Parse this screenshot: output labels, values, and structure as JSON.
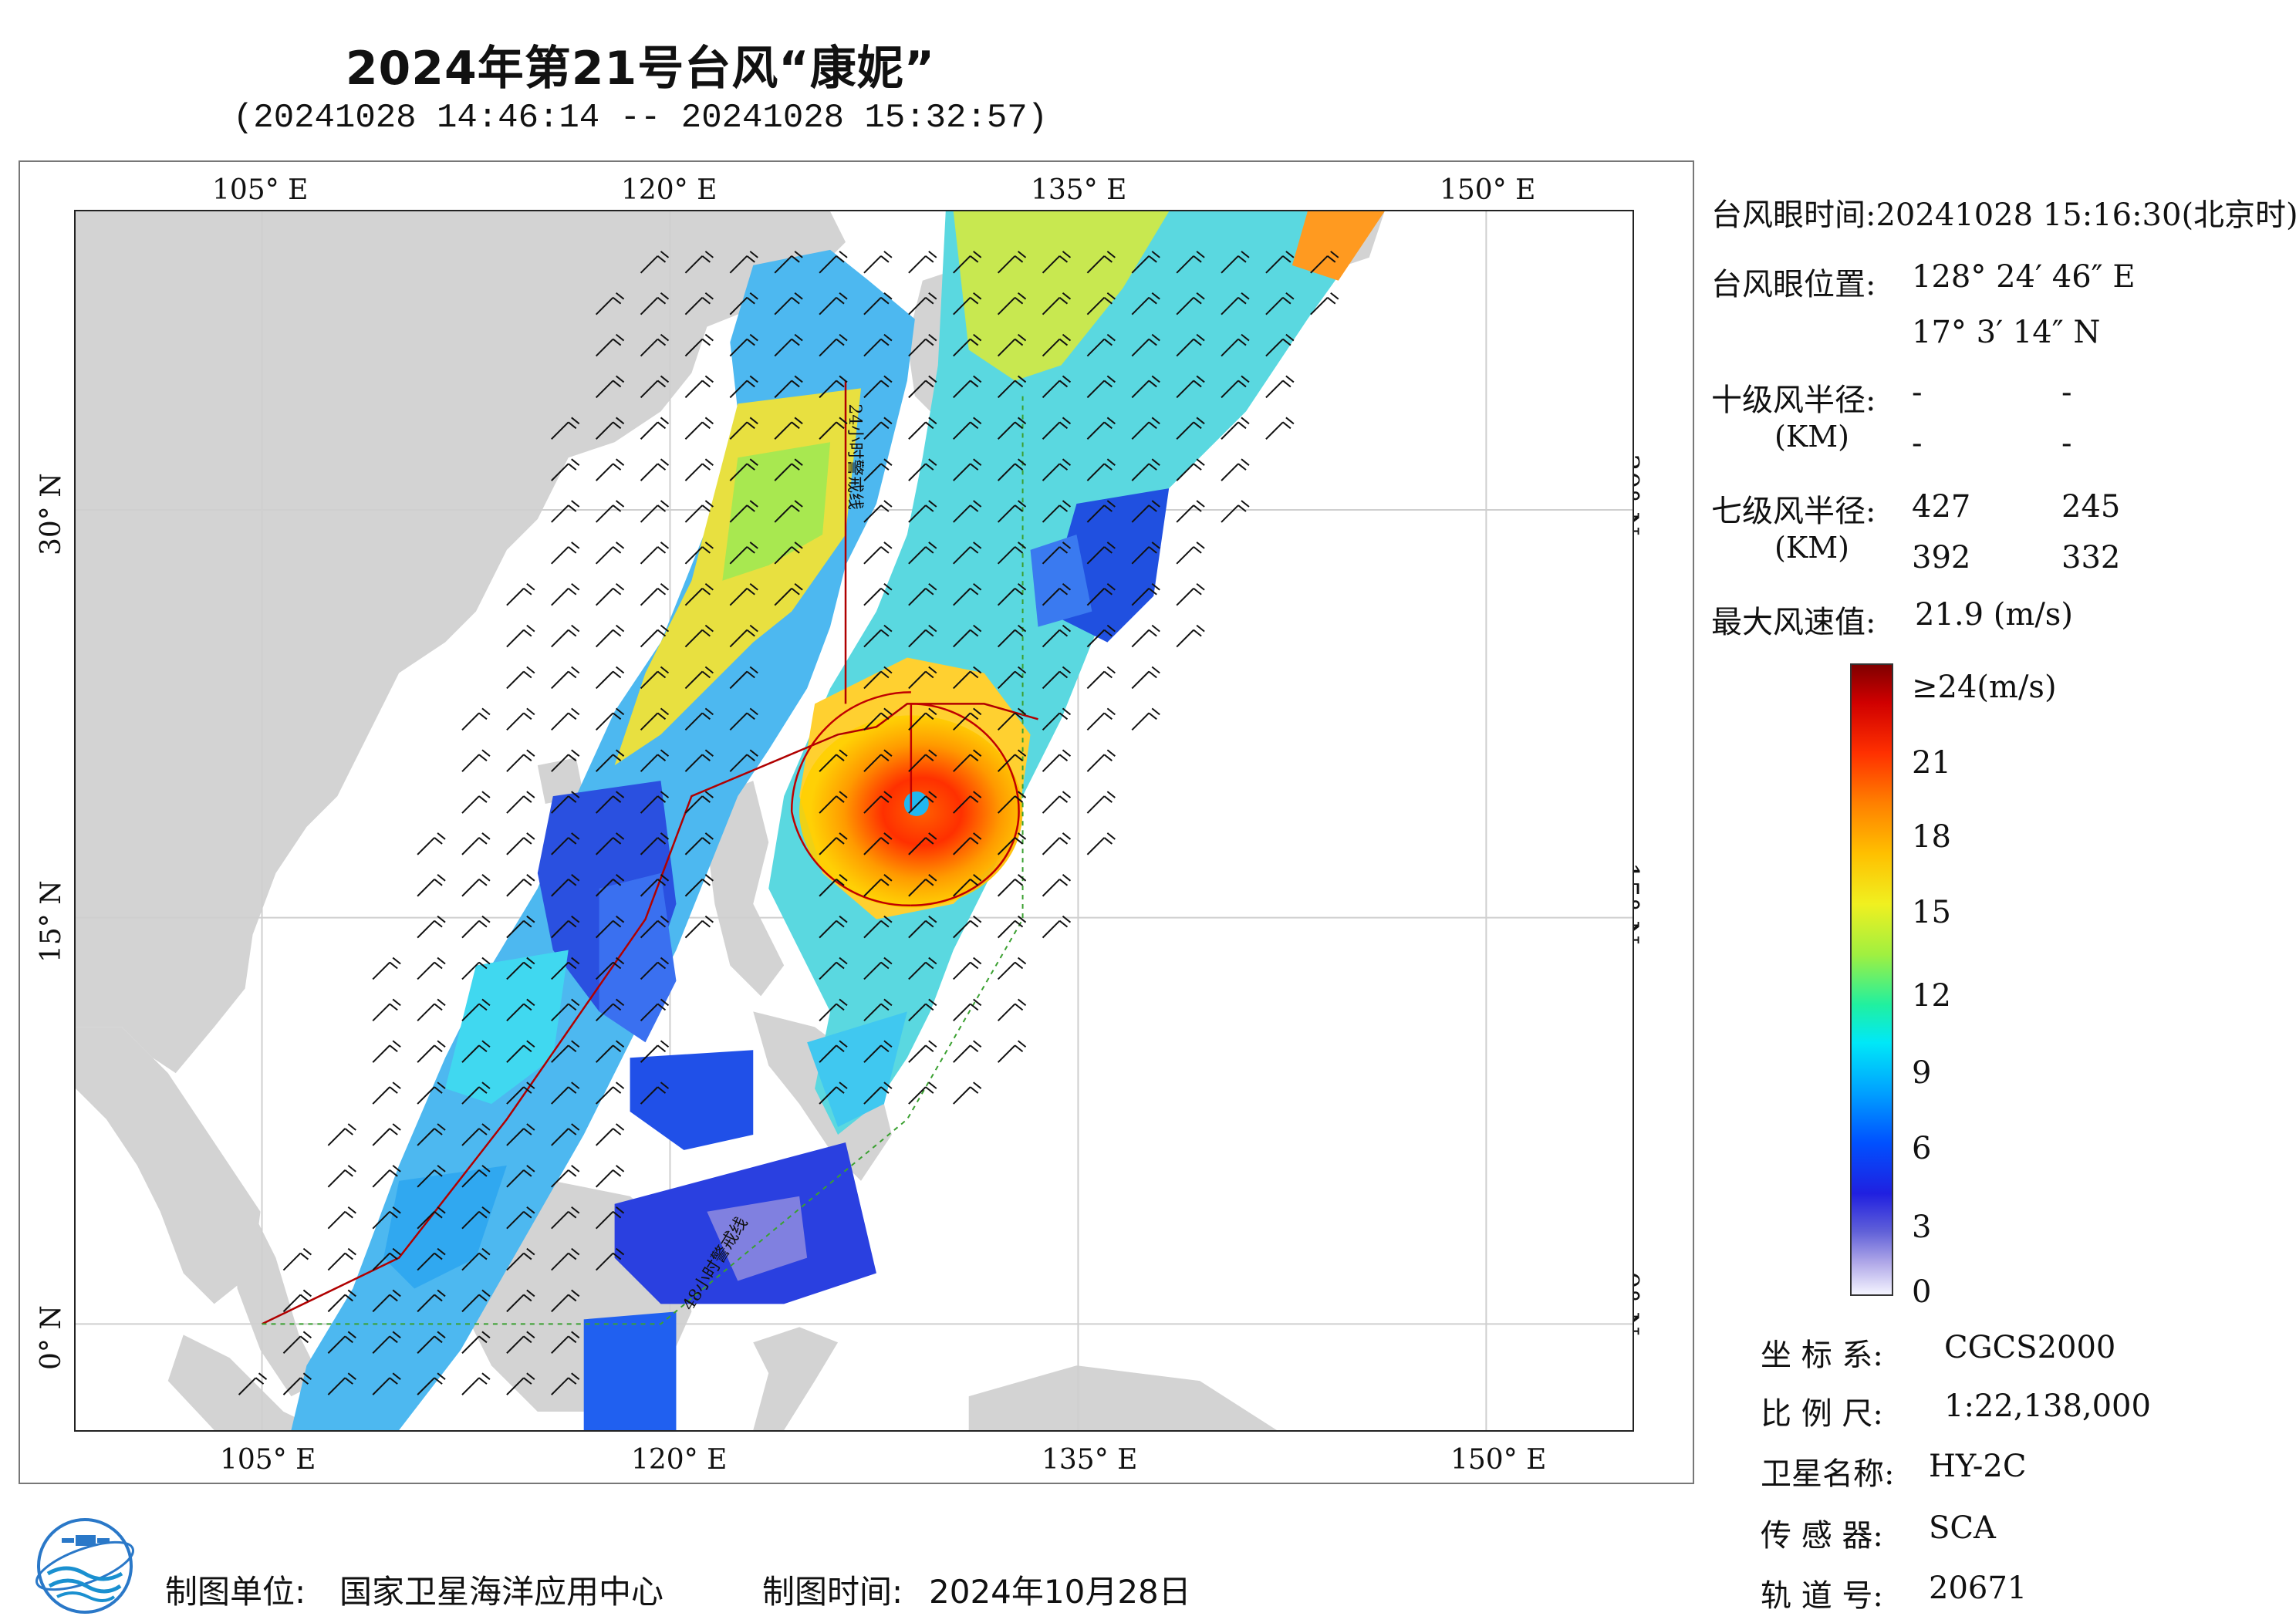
{
  "title": "2024年第21号台风“康妮”",
  "subtitle": "(20241028 14:46:14 -- 20241028 15:32:57)",
  "axes": {
    "lon_labels": [
      "105° E",
      "120° E",
      "135° E",
      "150° E"
    ],
    "lat_labels": [
      "30° N",
      "15° N",
      "0° N"
    ]
  },
  "map_labels": {
    "warn24": "24小时警戒线",
    "warn48": "48小时警戒线"
  },
  "info": {
    "eye_time_label": "台风眼时间:",
    "eye_time_value": "20241028 15:16:30(北京时)",
    "eye_pos_label": "台风眼位置:",
    "eye_lon": "128° 24′ 46″ E",
    "eye_lat": "17° 3′ 14″ N",
    "r10_label": "十级风半径:",
    "r10_unit": "(KM)",
    "r10_values": [
      "-",
      "-",
      "-",
      "-"
    ],
    "r7_label": "七级风半径:",
    "r7_unit": "(KM)",
    "r7_values": [
      "427",
      "245",
      "392",
      "332"
    ],
    "max_wind_label": "最大风速值:",
    "max_wind_value": "21.9  (m/s)"
  },
  "colorbar": {
    "labels": [
      "≥24(m/s)",
      "21",
      "18",
      "15",
      "12",
      "9",
      "6",
      "3",
      "0"
    ]
  },
  "meta": {
    "crs_label": "坐 标 系:",
    "crs_value": "CGCS2000",
    "scale_label": "比 例 尺:",
    "scale_value": "1:22,138,000",
    "sat_label": "卫星名称:",
    "sat_value": "HY-2C",
    "sensor_label": "传 感 器:",
    "sensor_value": "SCA",
    "orbit_label": "轨 道 号:",
    "orbit_value": "20671"
  },
  "footer": {
    "unit_label": "制图单位:",
    "unit_value": "国家卫星海洋应用中心",
    "time_label": "制图时间:",
    "time_value": "2024年10月28日"
  },
  "colors": {
    "land": "#d3d3d3",
    "sea": "#ffffff",
    "warn24_line": "#b00000",
    "warn48_line": "#3aa030"
  }
}
